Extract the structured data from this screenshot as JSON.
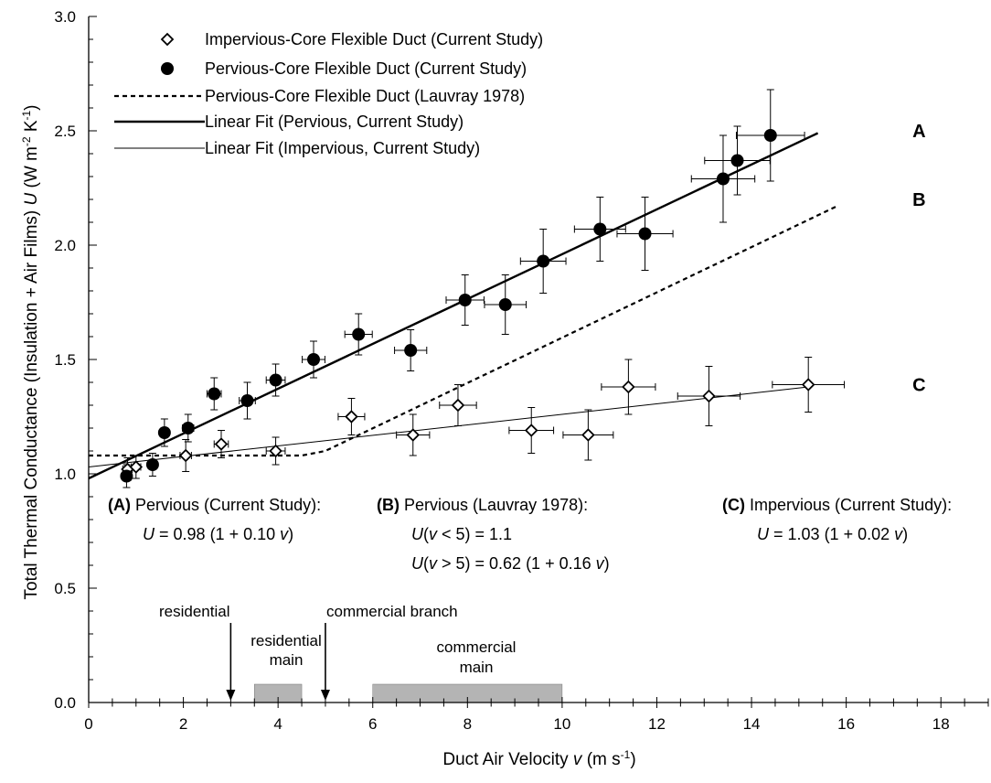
{
  "chart_data": {
    "type": "scatter",
    "xlabel": "Duct Air Velocity v (m s⁻¹)",
    "ylabel": "Total Thermal Conductance (Insulation + Air Films) U (W m⁻² K⁻¹)",
    "xlim": [
      0,
      19
    ],
    "ylim": [
      0,
      3.0
    ],
    "xticks": [
      0,
      2,
      4,
      6,
      8,
      10,
      12,
      14,
      16,
      18
    ],
    "yticks": [
      0.0,
      0.5,
      1.0,
      1.5,
      2.0,
      2.5,
      3.0
    ],
    "ytick_labels": [
      "0.0",
      "0.5",
      "1.0",
      "1.5",
      "2.0",
      "2.5",
      "3.0"
    ],
    "xtick_minor_step": 0.5,
    "ytick_minor_step": 0.1,
    "grid": false,
    "legend_position": "top-left",
    "legend": [
      "Impervious-Core Flexible Duct (Current Study)",
      "Pervious-Core Flexible Duct (Current Study)",
      "Pervious-Core Flexible Duct (Lauvray 1978)",
      "Linear Fit (Pervious, Current Study)",
      "Linear Fit (Impervious, Current Study)"
    ],
    "series": [
      {
        "name": "Impervious-Core Flexible Duct (Current Study)",
        "marker": "open-diamond",
        "points": [
          {
            "x": 0.82,
            "y": 1.02,
            "xerr": 0.1,
            "yerr": 0.05
          },
          {
            "x": 1.0,
            "y": 1.03,
            "xerr": 0.1,
            "yerr": 0.05
          },
          {
            "x": 2.05,
            "y": 1.08,
            "xerr": 0.12,
            "yerr": 0.07
          },
          {
            "x": 2.8,
            "y": 1.13,
            "xerr": 0.15,
            "yerr": 0.06
          },
          {
            "x": 3.95,
            "y": 1.1,
            "xerr": 0.2,
            "yerr": 0.06
          },
          {
            "x": 5.55,
            "y": 1.25,
            "xerr": 0.28,
            "yerr": 0.08
          },
          {
            "x": 6.85,
            "y": 1.17,
            "xerr": 0.35,
            "yerr": 0.09
          },
          {
            "x": 7.8,
            "y": 1.3,
            "xerr": 0.39,
            "yerr": 0.09
          },
          {
            "x": 9.35,
            "y": 1.19,
            "xerr": 0.47,
            "yerr": 0.1
          },
          {
            "x": 10.55,
            "y": 1.17,
            "xerr": 0.53,
            "yerr": 0.11
          },
          {
            "x": 11.4,
            "y": 1.38,
            "xerr": 0.57,
            "yerr": 0.12
          },
          {
            "x": 13.1,
            "y": 1.34,
            "xerr": 0.66,
            "yerr": 0.13
          },
          {
            "x": 15.2,
            "y": 1.39,
            "xerr": 0.76,
            "yerr": 0.12
          }
        ]
      },
      {
        "name": "Pervious-Core Flexible Duct (Current Study)",
        "marker": "filled-circle",
        "points": [
          {
            "x": 0.8,
            "y": 0.99,
            "xerr": 0.1,
            "yerr": 0.05
          },
          {
            "x": 1.35,
            "y": 1.04,
            "xerr": 0.1,
            "yerr": 0.05
          },
          {
            "x": 1.6,
            "y": 1.18,
            "xerr": 0.1,
            "yerr": 0.06
          },
          {
            "x": 2.1,
            "y": 1.2,
            "xerr": 0.12,
            "yerr": 0.06
          },
          {
            "x": 2.65,
            "y": 1.35,
            "xerr": 0.15,
            "yerr": 0.07
          },
          {
            "x": 3.35,
            "y": 1.32,
            "xerr": 0.17,
            "yerr": 0.08
          },
          {
            "x": 3.95,
            "y": 1.41,
            "xerr": 0.2,
            "yerr": 0.07
          },
          {
            "x": 4.75,
            "y": 1.5,
            "xerr": 0.24,
            "yerr": 0.08
          },
          {
            "x": 5.7,
            "y": 1.61,
            "xerr": 0.29,
            "yerr": 0.09
          },
          {
            "x": 6.8,
            "y": 1.54,
            "xerr": 0.34,
            "yerr": 0.09
          },
          {
            "x": 7.95,
            "y": 1.76,
            "xerr": 0.4,
            "yerr": 0.11
          },
          {
            "x": 8.8,
            "y": 1.74,
            "xerr": 0.44,
            "yerr": 0.13
          },
          {
            "x": 9.6,
            "y": 1.93,
            "xerr": 0.48,
            "yerr": 0.14
          },
          {
            "x": 10.8,
            "y": 2.07,
            "xerr": 0.54,
            "yerr": 0.14
          },
          {
            "x": 11.75,
            "y": 2.05,
            "xerr": 0.59,
            "yerr": 0.16
          },
          {
            "x": 13.4,
            "y": 2.29,
            "xerr": 0.67,
            "yerr": 0.19
          },
          {
            "x": 13.7,
            "y": 2.37,
            "xerr": 0.69,
            "yerr": 0.15
          },
          {
            "x": 14.4,
            "y": 2.48,
            "xerr": 0.72,
            "yerr": 0.2
          }
        ]
      }
    ],
    "lines": [
      {
        "name": "Pervious-Core Flexible Duct (Lauvray 1978)",
        "style": "dashed",
        "points": [
          [
            0,
            1.08
          ],
          [
            4.5,
            1.08
          ],
          [
            5.0,
            1.1
          ],
          [
            15.8,
            2.17
          ]
        ]
      },
      {
        "name": "Linear Fit (Pervious, Current Study)",
        "style": "solid-thick",
        "points": [
          [
            0,
            0.98
          ],
          [
            15.4,
            2.49
          ]
        ]
      },
      {
        "name": "Linear Fit (Impervious, Current Study)",
        "style": "solid-thin",
        "points": [
          [
            0,
            1.03
          ],
          [
            15.2,
            1.38
          ]
        ]
      }
    ],
    "curve_labels": [
      {
        "text": "A",
        "x": 17.4,
        "y": 2.5
      },
      {
        "text": "B",
        "x": 17.4,
        "y": 2.2
      },
      {
        "text": "C",
        "x": 17.4,
        "y": 1.39
      }
    ],
    "equations": {
      "a_head": "(A)",
      "a_title": "Pervious (Current Study):",
      "a_u": "U",
      "a_formula": "= 0.98 (1 + 0.10",
      "a_v": "v",
      "a_close": ")",
      "b_head": "(B)",
      "b_title": "Pervious (Lauvray 1978):",
      "b1_u": "U",
      "b1_open": "(",
      "b1_v": "v",
      "b1_rest": " < 5) = 1.1",
      "b2_u": "U",
      "b2_open": "(",
      "b2_v": "v",
      "b2_rest": " > 5) = 0.62 (1 + 0.16",
      "b2_v2": "v",
      "b2_close": ")",
      "c_head": "(C)",
      "c_title": "Impervious (Current Study):",
      "c_u": "U",
      "c_formula": "= 1.03 (1 + 0.02",
      "c_v": "v",
      "c_close": ")"
    },
    "annotations": {
      "residential": "residential",
      "residential_at": 3,
      "commercial_branch": "commercial branch",
      "commercial_branch_at": 5,
      "residential_main_l1": "residential",
      "residential_main_l2": "main",
      "residential_main_range": [
        3.5,
        4.5
      ],
      "commercial_main_l1": "commercial",
      "commercial_main_l2": "main",
      "commercial_main_range": [
        6,
        10
      ],
      "band_height": 0.08
    },
    "axis_titles": {
      "x_main": "Duct Air Velocity ",
      "x_var": "v",
      "x_unit": "  (m s",
      "x_exp": "-1",
      "x_close": ")",
      "y_main": "Total Thermal Conductance (Insulation + Air Films)  ",
      "y_var": "U",
      "y_unit": " (W m",
      "y_exp1": "-2",
      "y_k": " K",
      "y_exp2": "-1",
      "y_close": ")"
    }
  }
}
